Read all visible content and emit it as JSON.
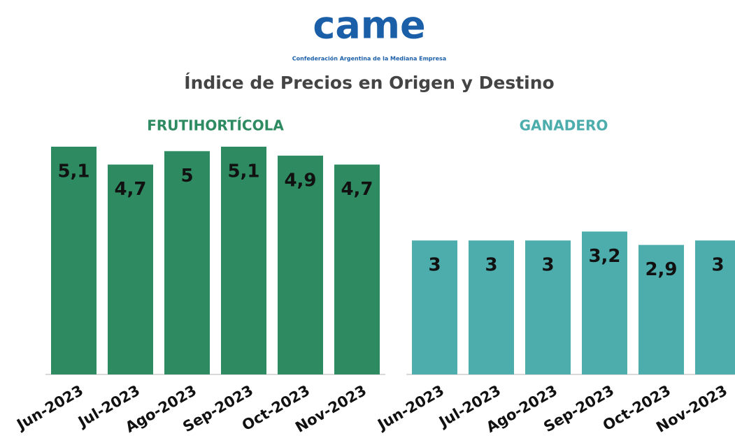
{
  "logo": {
    "text": "came",
    "subtitle": "Confederación Argentina de la Mediana Empresa"
  },
  "title": "Índice de Precios en Origen y Destino",
  "chart_data": [
    {
      "type": "bar",
      "title": "FRUTIHORTÍCOLA",
      "color": "#2e8b61",
      "categories": [
        "Jun-2023",
        "Jul-2023",
        "Ago-2023",
        "Sep-2023",
        "Oct-2023",
        "Nov-2023"
      ],
      "values": [
        5.1,
        4.7,
        5,
        5.1,
        4.9,
        4.7
      ],
      "value_labels": [
        "5,1",
        "4,7",
        "5",
        "5,1",
        "4,9",
        "4,7"
      ],
      "ylim": [
        0,
        5.1
      ]
    },
    {
      "type": "bar",
      "title": "GANADERO",
      "color": "#4dadad",
      "categories": [
        "Jun-2023",
        "Jul-2023",
        "Ago-2023",
        "Sep-2023",
        "Oct-2023",
        "Nov-2023"
      ],
      "values": [
        3,
        3,
        3,
        3.2,
        2.9,
        3
      ],
      "value_labels": [
        "3",
        "3",
        "3",
        "3,2",
        "2,9",
        "3"
      ],
      "ylim": [
        0,
        5.1
      ]
    }
  ]
}
